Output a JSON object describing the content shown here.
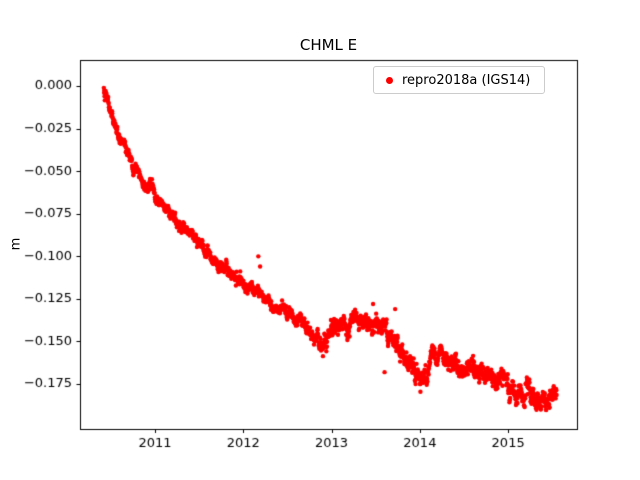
{
  "chart_data": {
    "type": "scatter",
    "title": "CHML E",
    "xlabel": "",
    "ylabel": "m",
    "grid": false,
    "legend_position": "upper right",
    "xlim": [
      2010.15,
      2015.78
    ],
    "ylim": [
      -0.2014,
      0.0153
    ],
    "xticks": [
      2011,
      2012,
      2013,
      2014,
      2015
    ],
    "yticks": [
      0.0,
      -0.025,
      -0.05,
      -0.075,
      -0.1,
      -0.125,
      -0.15,
      -0.175
    ],
    "background_color": "#ffffff",
    "axes_color": "#000000",
    "series": [
      {
        "name": "repro2018a (IGS14)",
        "color": "#ff0000",
        "marker": "circle",
        "marker_radius": 2.2,
        "x_start": 2010.42,
        "x_end": 2015.55,
        "points_per_year": 365,
        "noise_sigma": [
          [
            2011.0,
            0.0018
          ],
          [
            2012.8,
            0.002
          ],
          [
            2013.6,
            0.003
          ],
          [
            2015.6,
            0.0032
          ]
        ],
        "trend": [
          [
            2010.42,
            0.0
          ],
          [
            2010.46,
            -0.009
          ],
          [
            2010.5,
            -0.017
          ],
          [
            2010.55,
            -0.025
          ],
          [
            2010.6,
            -0.031
          ],
          [
            2010.65,
            -0.036
          ],
          [
            2010.7,
            -0.041
          ],
          [
            2010.75,
            -0.046
          ],
          [
            2010.8,
            -0.05
          ],
          [
            2010.85,
            -0.054
          ],
          [
            2010.9,
            -0.058
          ],
          [
            2010.95,
            -0.061
          ],
          [
            2011.0,
            -0.064
          ],
          [
            2011.1,
            -0.071
          ],
          [
            2011.2,
            -0.077
          ],
          [
            2011.3,
            -0.083
          ],
          [
            2011.4,
            -0.089
          ],
          [
            2011.5,
            -0.094
          ],
          [
            2011.6,
            -0.099
          ],
          [
            2011.7,
            -0.104
          ],
          [
            2011.8,
            -0.108
          ],
          [
            2011.9,
            -0.113
          ],
          [
            2012.0,
            -0.117
          ],
          [
            2012.1,
            -0.12
          ],
          [
            2012.2,
            -0.123
          ],
          [
            2012.3,
            -0.127
          ],
          [
            2012.4,
            -0.13
          ],
          [
            2012.5,
            -0.133
          ],
          [
            2012.6,
            -0.136
          ],
          [
            2012.7,
            -0.14
          ],
          [
            2012.8,
            -0.146
          ],
          [
            2012.88,
            -0.151
          ],
          [
            2012.94,
            -0.153
          ],
          [
            2012.97,
            -0.143
          ],
          [
            2013.0,
            -0.14
          ],
          [
            2013.05,
            -0.137
          ],
          [
            2013.1,
            -0.139
          ],
          [
            2013.15,
            -0.142
          ],
          [
            2013.2,
            -0.14
          ],
          [
            2013.25,
            -0.137
          ],
          [
            2013.3,
            -0.136
          ],
          [
            2013.35,
            -0.139
          ],
          [
            2013.4,
            -0.141
          ],
          [
            2013.45,
            -0.14
          ],
          [
            2013.5,
            -0.139
          ],
          [
            2013.55,
            -0.141
          ],
          [
            2013.6,
            -0.144
          ],
          [
            2013.65,
            -0.147
          ],
          [
            2013.7,
            -0.15
          ],
          [
            2013.75,
            -0.154
          ],
          [
            2013.8,
            -0.158
          ],
          [
            2013.85,
            -0.161
          ],
          [
            2013.9,
            -0.164
          ],
          [
            2013.95,
            -0.166
          ],
          [
            2014.0,
            -0.167
          ],
          [
            2014.05,
            -0.167
          ],
          [
            2014.1,
            -0.165
          ],
          [
            2014.15,
            -0.162
          ],
          [
            2014.2,
            -0.16
          ],
          [
            2014.3,
            -0.162
          ],
          [
            2014.4,
            -0.164
          ],
          [
            2014.5,
            -0.165
          ],
          [
            2014.6,
            -0.167
          ],
          [
            2014.7,
            -0.169
          ],
          [
            2014.8,
            -0.172
          ],
          [
            2014.9,
            -0.174
          ],
          [
            2015.0,
            -0.176
          ],
          [
            2015.1,
            -0.178
          ],
          [
            2015.2,
            -0.18
          ],
          [
            2015.3,
            -0.182
          ],
          [
            2015.4,
            -0.184
          ],
          [
            2015.5,
            -0.185
          ],
          [
            2015.55,
            -0.186
          ]
        ],
        "outliers": [
          [
            2012.17,
            -0.1
          ],
          [
            2012.19,
            -0.106
          ],
          [
            2013.47,
            -0.128
          ],
          [
            2013.6,
            -0.168
          ],
          [
            2013.72,
            -0.131
          ]
        ]
      }
    ]
  }
}
